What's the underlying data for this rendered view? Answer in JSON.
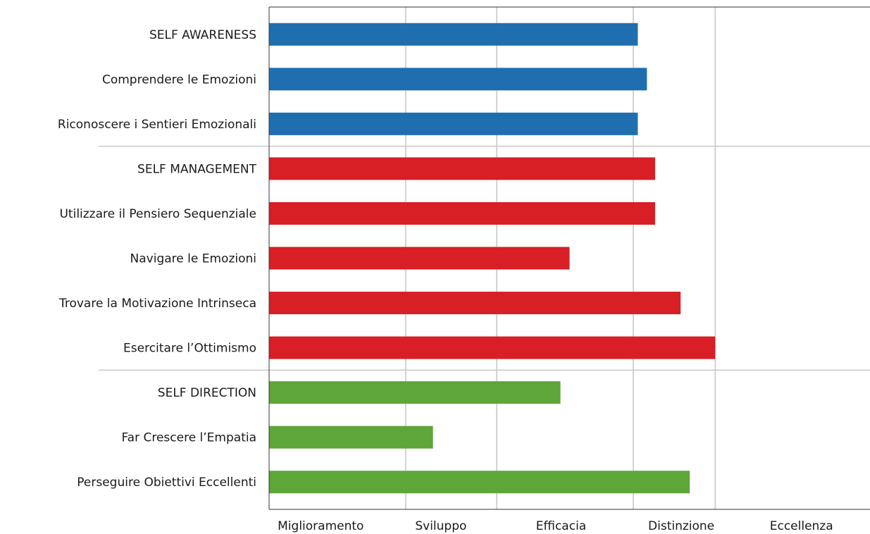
{
  "chart_data": {
    "type": "bar",
    "orientation": "horizontal",
    "categories": [
      "SELF AWARENESS",
      "Comprendere le Emozioni",
      "Riconoscere i Sentieri Emozionali",
      "SELF MANAGEMENT",
      "Utilizzare il Pensiero Sequenziale",
      "Navigare le Emozioni",
      "Trovare la Motivazione Intrinseca",
      "Esercitare l’Ottimismo",
      "SELF DIRECTION",
      "Far Crescere l’Empatia",
      "Perseguire Obiettivi Eccellenti"
    ],
    "values": [
      4.05,
      4.15,
      4.05,
      4.24,
      4.24,
      3.3,
      4.52,
      4.9,
      3.2,
      1.8,
      4.62
    ],
    "groups": [
      "SELF AWARENESS",
      "SELF AWARENESS",
      "SELF AWARENESS",
      "SELF MANAGEMENT",
      "SELF MANAGEMENT",
      "SELF MANAGEMENT",
      "SELF MANAGEMENT",
      "SELF MANAGEMENT",
      "SELF DIRECTION",
      "SELF DIRECTION",
      "SELF DIRECTION"
    ],
    "group_colors": {
      "SELF AWARENESS": "#1f6fb0",
      "SELF MANAGEMENT": "#d81f26",
      "SELF DIRECTION": "#5ea53a"
    },
    "x_tick_labels": [
      "Miglioramento",
      "Sviluppo",
      "Efficacia",
      "Distinzione",
      "Eccellenza"
    ],
    "x_gridlines": [
      1.5,
      2.5,
      4.0,
      4.9
    ],
    "xlim": [
      0,
      6.6
    ],
    "grid": true,
    "title": "",
    "xlabel": "",
    "ylabel": ""
  }
}
